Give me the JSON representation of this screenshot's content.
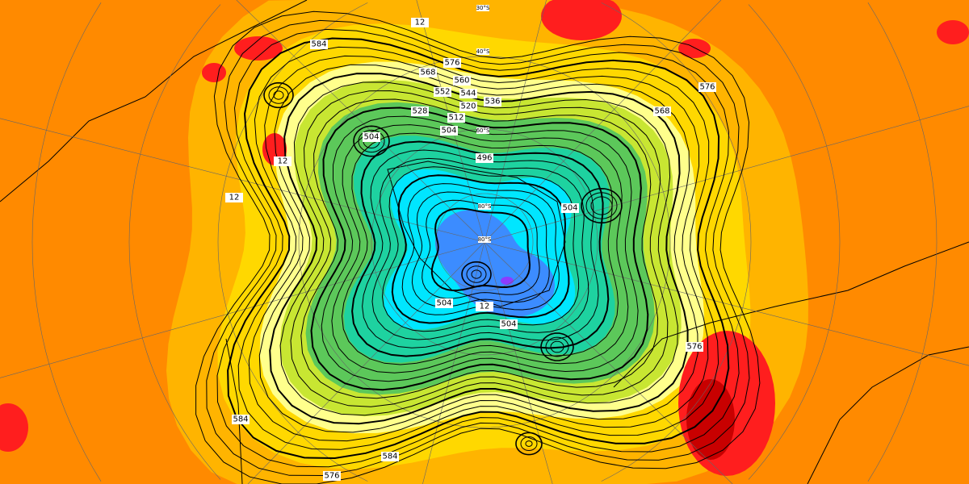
{
  "map": {
    "projection": "polar-stereographic-south",
    "field": "geopotential-height-500hPa-contours-with-filled-anomaly",
    "colors": {
      "background_orange": "#ff8a00",
      "light_orange": "#ffb400",
      "yellow": "#ffd800",
      "pale_yellow": "#ffff8c",
      "yellow_green": "#c8e632",
      "green": "#5cc85a",
      "teal": "#1ed2a0",
      "cyan": "#00e6ff",
      "blue": "#3c8cff",
      "dark_blue": "#2c2cd0",
      "violet": "#8c3cff",
      "red": "#ff1e1e",
      "dark_red": "#c80000"
    },
    "contour_labels": [
      "584",
      "576",
      "568",
      "560",
      "552",
      "544",
      "536",
      "528",
      "520",
      "512",
      "504",
      "496",
      "504",
      "504",
      "504",
      "504",
      "576",
      "576",
      "584",
      "568",
      "584",
      "576",
      "12",
      "12",
      "12",
      "12"
    ],
    "latitude_labels": [
      "30°S",
      "40°S",
      "60°S",
      "80°S",
      "80°S"
    ]
  }
}
